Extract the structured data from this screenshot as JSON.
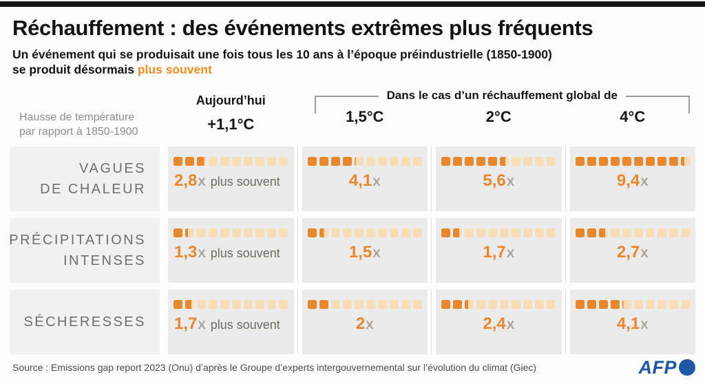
{
  "page": {
    "title": "Réchauffement : des événements extrêmes plus fréquents",
    "subtitle_line1": "Un événement qui se produisait une fois tous les 10 ans à l’époque préindustrielle (1850-1900)",
    "subtitle_line2_prefix": "se produit désormais ",
    "subtitle_highlight": "plus souvent"
  },
  "header": {
    "axis_label": "Hausse de température\npar rapport à 1850-1900",
    "today_label": "Aujourd’hui",
    "today_value": "+1,1°C",
    "scenario_group_label": "Dans le cas d’un réchauffement global de",
    "scenarios": [
      "1,5°C",
      "2°C",
      "4°C"
    ]
  },
  "table": {
    "max_squares": 10,
    "x_suffix": "X",
    "often_label": "plus souvent",
    "rows": [
      {
        "label": "VAGUES\nDE CHALEUR",
        "cells": [
          {
            "value": 2.8,
            "display": "2,8"
          },
          {
            "value": 4.1,
            "display": "4,1"
          },
          {
            "value": 5.6,
            "display": "5,6"
          },
          {
            "value": 9.4,
            "display": "9,4"
          }
        ]
      },
      {
        "label": "PRÉCIPITATIONS\nINTENSES",
        "cells": [
          {
            "value": 1.3,
            "display": "1,3"
          },
          {
            "value": 1.5,
            "display": "1,5"
          },
          {
            "value": 1.7,
            "display": "1,7"
          },
          {
            "value": 2.7,
            "display": "2,7"
          }
        ]
      },
      {
        "label": "SÉCHERESSES",
        "cells": [
          {
            "value": 1.7,
            "display": "1,7"
          },
          {
            "value": 2.0,
            "display": "2"
          },
          {
            "value": 2.4,
            "display": "2,4"
          },
          {
            "value": 4.1,
            "display": "4,1"
          }
        ]
      }
    ]
  },
  "chart_data": {
    "type": "heatmap",
    "subtype": "pictogram-table",
    "title": "Réchauffement : des événements extrêmes plus fréquents",
    "subtitle": "Un événement qui se produisait une fois tous les 10 ans à l’époque préindustrielle (1850-1900) se produit désormais plus souvent",
    "row_axis_label": "Hausse de température par rapport à 1850-1900",
    "column_group_label": "Dans le cas d’un réchauffement global de",
    "categories": [
      "Vagues de chaleur",
      "Précipitations intenses",
      "Sécheresses"
    ],
    "columns": [
      "Aujourd’hui +1,1°C",
      "1,5°C",
      "2°C",
      "4°C"
    ],
    "series": [
      {
        "name": "Aujourd’hui +1,1°C",
        "values": [
          2.8,
          1.3,
          1.7
        ]
      },
      {
        "name": "1,5°C",
        "values": [
          4.1,
          1.5,
          2.0
        ]
      },
      {
        "name": "2°C",
        "values": [
          5.6,
          1.7,
          2.4
        ]
      },
      {
        "name": "4°C",
        "values": [
          9.4,
          2.7,
          4.1
        ]
      }
    ],
    "unit": "x plus souvent (multiplicateur de fréquence)",
    "pictogram_scale_max": 10,
    "legend_position": "none",
    "grid": false
  },
  "colors": {
    "accent_orange": "#e8872c",
    "highlight_orange": "#ef8f1f",
    "square_filled": "#e8872c",
    "square_empty": "#f7ddb4",
    "cell_bg": "#ebebeb",
    "label_bg": "#f1f1f1",
    "afp_blue": "#1d57a5"
  },
  "footer": {
    "source": "Source : Emissions gap report 2023 (Onu) d’après le Groupe d’experts intergouvernemental sur l’évolution du climat (Giec)",
    "logo_text": "AFP"
  }
}
